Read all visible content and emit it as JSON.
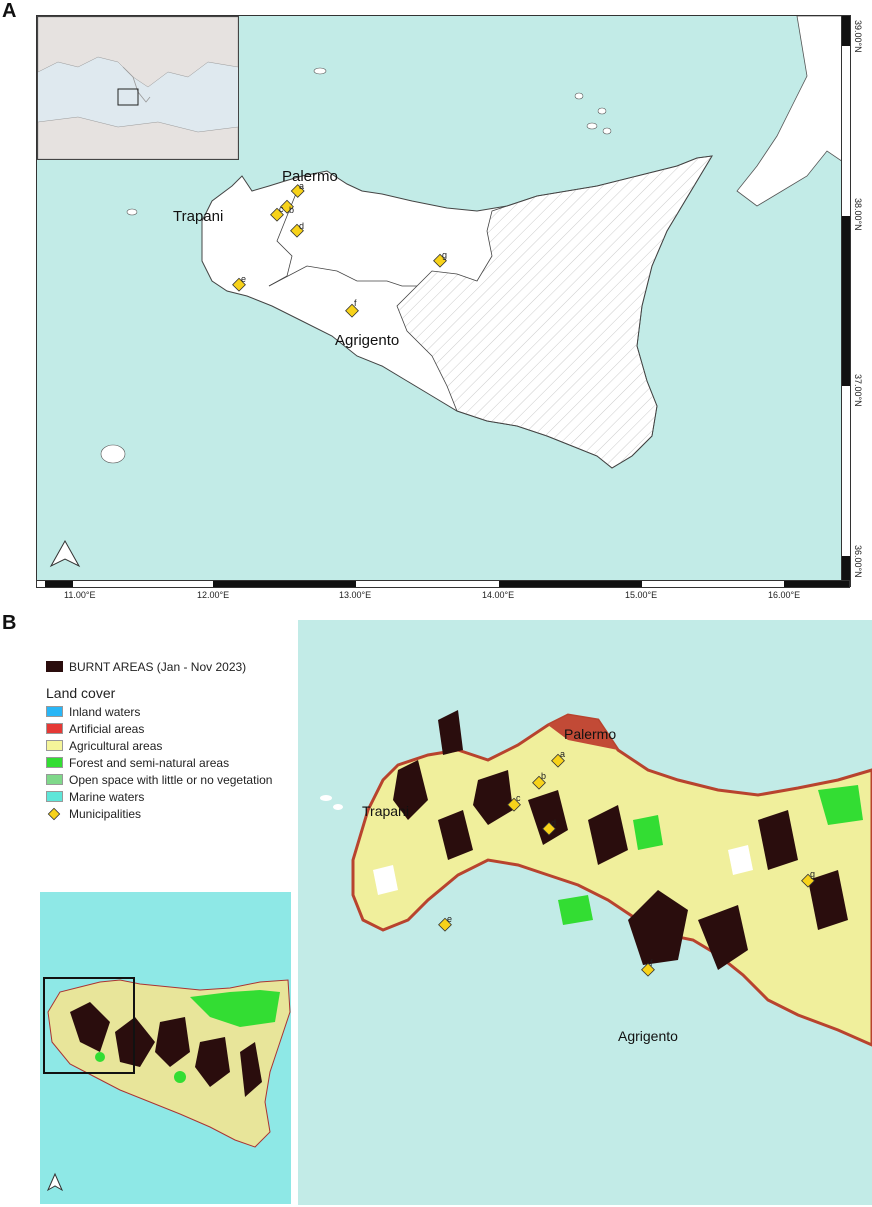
{
  "panels": {
    "a": "A",
    "b": "B"
  },
  "map_a": {
    "cities": {
      "palermo": "Palermo",
      "trapani": "Trapani",
      "agrigento": "Agrigento"
    },
    "markers": [
      "a",
      "b",
      "c",
      "d",
      "e",
      "f",
      "g"
    ],
    "longitudes": [
      "11.00°E",
      "12.00°E",
      "13.00°E",
      "14.00°E",
      "15.00°E",
      "16.00°E"
    ],
    "latitudes": [
      "39.00°N",
      "38.00°N",
      "37.00°N",
      "36.00°N"
    ]
  },
  "legend": {
    "burnt": "BURNT AREAS (Jan - Nov 2023)",
    "land_cover_title": "Land cover",
    "items": [
      {
        "label": "Inland waters",
        "color": "#29b6f6"
      },
      {
        "label": "Artificial areas",
        "color": "#e53935"
      },
      {
        "label": "Agricultural areas",
        "color": "#f5f59a"
      },
      {
        "label": "Forest and semi-natural areas",
        "color": "#33dd33"
      },
      {
        "label": "Open space with little or no vegetation",
        "color": "#7fd88a"
      },
      {
        "label": "Marine waters",
        "color": "#5ee6d9"
      }
    ],
    "municipalities": "Municipalities",
    "burnt_color": "#2a0d0d",
    "marker_color": "#f7d21a"
  },
  "map_b": {
    "cities": {
      "palermo": "Palermo",
      "trapani": "Trapani",
      "agrigento": "Agrigento"
    },
    "markers": [
      "a",
      "b",
      "c",
      "d",
      "e",
      "f",
      "g"
    ]
  }
}
